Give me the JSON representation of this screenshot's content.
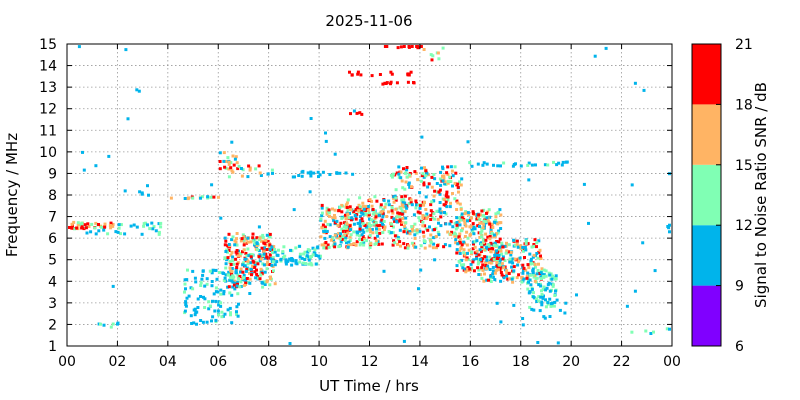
{
  "chart_data": {
    "type": "heatmap",
    "title": "2025-11-06",
    "xlabel": "UT Time / hrs",
    "ylabel": "Frequency / MHz",
    "colorbar_label": "Signal to Noise Ratio SNR / dB",
    "xlim": [
      0,
      24
    ],
    "ylim": [
      1,
      15
    ],
    "x_ticks": [
      "00",
      "02",
      "04",
      "06",
      "08",
      "10",
      "12",
      "14",
      "16",
      "18",
      "20",
      "22",
      "00"
    ],
    "y_ticks": [
      "1",
      "2",
      "3",
      "4",
      "5",
      "6",
      "7",
      "8",
      "9",
      "10",
      "11",
      "12",
      "13",
      "14",
      "15"
    ],
    "grid": true,
    "colorbar": {
      "range": [
        6,
        21
      ],
      "ticks": [
        "6",
        "9",
        "12",
        "15",
        "18",
        "21"
      ],
      "bands": [
        {
          "from": 6,
          "to": 9,
          "color": "#8000ff"
        },
        {
          "from": 9,
          "to": 12,
          "color": "#00b4eb"
        },
        {
          "from": 12,
          "to": 15,
          "color": "#80ffb4"
        },
        {
          "from": 15,
          "to": 18,
          "color": "#ffb464"
        },
        {
          "from": 18,
          "to": 21,
          "color": "#ff0000"
        }
      ]
    },
    "clusters": [
      {
        "t0": 0.0,
        "t1": 1.8,
        "f0": 6.5,
        "f1": 6.8,
        "n": 40,
        "snr": [
          13,
          21
        ]
      },
      {
        "t0": 0.6,
        "t1": 2.6,
        "f0": 6.2,
        "f1": 6.7,
        "n": 14,
        "snr": [
          9,
          14
        ]
      },
      {
        "t0": 2.6,
        "t1": 3.8,
        "f0": 6.2,
        "f1": 6.8,
        "n": 16,
        "snr": [
          9,
          14
        ]
      },
      {
        "t0": 1.0,
        "t1": 2.2,
        "f0": 1.9,
        "f1": 2.2,
        "n": 7,
        "snr": [
          9,
          13
        ]
      },
      {
        "t0": 2.8,
        "t1": 3.4,
        "f0": 8.0,
        "f1": 8.3,
        "n": 4,
        "snr": [
          9,
          12
        ]
      },
      {
        "t0": 4.0,
        "t1": 6.0,
        "f0": 7.9,
        "f1": 8.0,
        "n": 14,
        "snr": [
          9,
          20
        ]
      },
      {
        "t0": 4.6,
        "t1": 6.9,
        "f0": 2.0,
        "f1": 4.6,
        "n": 120,
        "snr": [
          9,
          13
        ]
      },
      {
        "t0": 6.0,
        "t1": 6.7,
        "f0": 9.2,
        "f1": 10.1,
        "n": 18,
        "snr": [
          10,
          20
        ]
      },
      {
        "t0": 6.3,
        "t1": 8.2,
        "f0": 8.9,
        "f1": 9.5,
        "n": 22,
        "snr": [
          9,
          21
        ]
      },
      {
        "t0": 6.2,
        "t1": 8.2,
        "f0": 3.8,
        "f1": 6.3,
        "n": 260,
        "snr": [
          9,
          21
        ]
      },
      {
        "t0": 8.0,
        "t1": 10.0,
        "f0": 4.8,
        "f1": 5.7,
        "n": 80,
        "snr": [
          9,
          14
        ]
      },
      {
        "t0": 8.8,
        "t1": 11.4,
        "f0": 8.9,
        "f1": 9.2,
        "n": 20,
        "snr": [
          9,
          12
        ]
      },
      {
        "t0": 10.0,
        "t1": 12.5,
        "f0": 5.6,
        "f1": 7.6,
        "n": 240,
        "snr": [
          9,
          21
        ]
      },
      {
        "t0": 11.0,
        "t1": 13.6,
        "f0": 6.3,
        "f1": 8.0,
        "n": 120,
        "snr": [
          10,
          21
        ]
      },
      {
        "t0": 11.0,
        "t1": 11.8,
        "f0": 11.8,
        "f1": 12.0,
        "n": 4,
        "snr": [
          18,
          21
        ]
      },
      {
        "t0": 11.0,
        "t1": 13.8,
        "f0": 13.6,
        "f1": 13.8,
        "n": 16,
        "snr": [
          18,
          21
        ]
      },
      {
        "t0": 12.3,
        "t1": 13.8,
        "f0": 13.2,
        "f1": 13.3,
        "n": 10,
        "snr": [
          19,
          21
        ]
      },
      {
        "t0": 12.5,
        "t1": 14.3,
        "f0": 14.9,
        "f1": 15.0,
        "n": 12,
        "snr": [
          19,
          21
        ]
      },
      {
        "t0": 14.0,
        "t1": 14.9,
        "f0": 14.3,
        "f1": 14.9,
        "n": 8,
        "snr": [
          12,
          21
        ]
      },
      {
        "t0": 12.8,
        "t1": 15.6,
        "f0": 5.6,
        "f1": 9.4,
        "n": 320,
        "snr": [
          9,
          21
        ]
      },
      {
        "t0": 15.4,
        "t1": 17.2,
        "f0": 4.5,
        "f1": 7.4,
        "n": 240,
        "snr": [
          9,
          21
        ]
      },
      {
        "t0": 16.2,
        "t1": 18.8,
        "f0": 4.0,
        "f1": 6.0,
        "n": 240,
        "snr": [
          9,
          21
        ]
      },
      {
        "t0": 15.8,
        "t1": 20.0,
        "f0": 9.4,
        "f1": 9.6,
        "n": 28,
        "snr": [
          9,
          13
        ]
      },
      {
        "t0": 18.2,
        "t1": 19.4,
        "f0": 2.8,
        "f1": 4.6,
        "n": 80,
        "snr": [
          9,
          15
        ]
      },
      {
        "t0": 17.0,
        "t1": 19.8,
        "f0": 2.0,
        "f1": 3.4,
        "n": 18,
        "snr": [
          9,
          12
        ]
      },
      {
        "t0": 22.0,
        "t1": 24.0,
        "f0": 1.6,
        "f1": 1.9,
        "n": 6,
        "snr": [
          9,
          14
        ]
      },
      {
        "t0": 23.6,
        "t1": 24.0,
        "f0": 6.3,
        "f1": 6.7,
        "n": 4,
        "snr": [
          9,
          12
        ]
      },
      {
        "t0": 0.0,
        "t1": 24.0,
        "f0": 1.0,
        "f1": 15.0,
        "n": 60,
        "snr": [
          9,
          12
        ]
      }
    ]
  }
}
